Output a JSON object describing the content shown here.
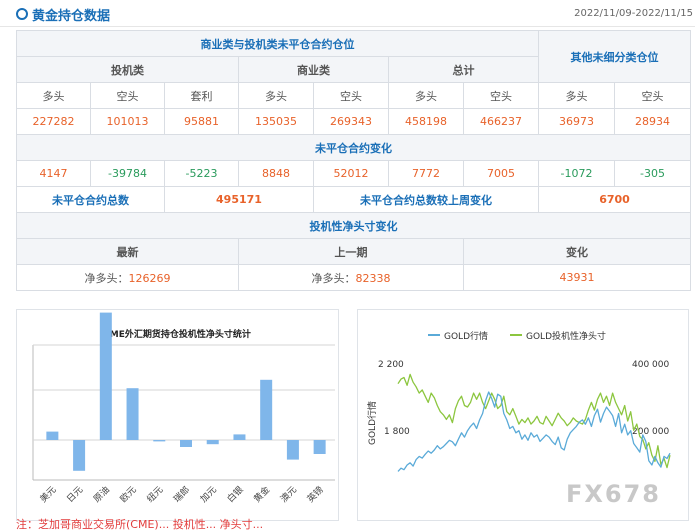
{
  "header": {
    "title": "黄金持仓数据",
    "date_range": "2022/11/09-2022/11/15"
  },
  "table": {
    "group_main": "商业类与投机类未平仓合约仓位",
    "group_other": "其他未细分类仓位",
    "cat_spec": "投机类",
    "cat_comm": "商业类",
    "cat_total": "总计",
    "cols": [
      "多头",
      "空头",
      "套利",
      "多头",
      "空头",
      "多头",
      "空头",
      "多头",
      "空头"
    ],
    "positions": [
      "227282",
      "101013",
      "95881",
      "135035",
      "269343",
      "458198",
      "466237",
      "36973",
      "28934"
    ],
    "change_title": "未平仓合约变化",
    "changes": [
      "4147",
      "-39784",
      "-5223",
      "8848",
      "52012",
      "7772",
      "7005",
      "-1072",
      "-305"
    ],
    "oi_total_label": "未平仓合约总数",
    "oi_total_value": "495171",
    "oi_change_label": "未平仓合约总数较上周变化",
    "oi_change_value": "6700",
    "net_title": "投机性净头寸变化",
    "net_latest_label": "最新",
    "net_prev_label": "上一期",
    "net_change_label": "变化",
    "net_latest_prefix": "净多头：",
    "net_latest_value": "126269",
    "net_prev_prefix": "净多头：",
    "net_prev_value": "82338",
    "net_change_value": "43931"
  },
  "chart_data": [
    {
      "type": "bar",
      "title": "CME外汇期货持仓投机性净头寸统计",
      "categories": [
        "美元",
        "日元",
        "原油",
        "欧元",
        "纽元",
        "瑞郎",
        "加元",
        "白银",
        "黄金",
        "澳元",
        "英镑"
      ],
      "values": [
        0.06,
        -0.22,
        0.91,
        0.37,
        -0.01,
        -0.05,
        -0.03,
        0.04,
        0.43,
        -0.14,
        -0.1
      ],
      "bar_color": "#7fb6ea",
      "grid": true
    },
    {
      "type": "line",
      "series": [
        {
          "name": "GOLD行情",
          "color": "#5aaad8"
        },
        {
          "name": "GOLD投机性净头寸",
          "color": "#8cc63f"
        }
      ],
      "ylabel_left": "GOLD行情",
      "left_ticks": [
        "2 200",
        "1 800"
      ],
      "right_ticks": [
        "400 000",
        "200 000"
      ],
      "ylim_left": [
        1650,
        2200
      ],
      "ylim_right": [
        20000,
        400000
      ],
      "gold_price": [
        1690,
        1705,
        1698,
        1720,
        1730,
        1715,
        1745,
        1760,
        1752,
        1770,
        1785,
        1775,
        1790,
        1810,
        1795,
        1805,
        1820,
        1835,
        1828,
        1810,
        1840,
        1870,
        1850,
        1880,
        1900,
        1915,
        1890,
        1930,
        1960,
        2020,
        2060,
        2030,
        1990,
        2050,
        2040,
        1960,
        1930,
        1890,
        1900,
        1870,
        1880,
        1840,
        1860,
        1835,
        1870,
        1850,
        1860,
        1830,
        1845,
        1860,
        1850,
        1830,
        1815,
        1850,
        1800,
        1790,
        1840,
        1870,
        1885,
        1900,
        1920,
        1930,
        1910,
        1940,
        1900,
        1950,
        1980,
        1920,
        1960,
        1990,
        1970,
        1950,
        1900,
        1960,
        1870,
        1910,
        1860,
        1880,
        1820,
        1800,
        1780,
        1860,
        1830,
        1740,
        1720,
        1760,
        1730,
        1710,
        1760,
        1750,
        1775
      ],
      "gold_net": [
        330000,
        345000,
        350000,
        325000,
        360000,
        335000,
        320000,
        300000,
        310000,
        290000,
        270000,
        300000,
        285000,
        260000,
        240000,
        230000,
        215000,
        230000,
        205000,
        250000,
        275000,
        290000,
        260000,
        255000,
        270000,
        300000,
        280000,
        300000,
        270000,
        250000,
        275000,
        300000,
        280000,
        250000,
        260000,
        290000,
        240000,
        230000,
        250000,
        225000,
        200000,
        215000,
        205000,
        220000,
        200000,
        210000,
        225000,
        205000,
        200000,
        225000,
        210000,
        195000,
        215000,
        235000,
        220000,
        210000,
        195000,
        205000,
        220000,
        210000,
        205000,
        200000,
        215000,
        245000,
        270000,
        245000,
        280000,
        300000,
        270000,
        290000,
        260000,
        300000,
        270000,
        250000,
        230000,
        260000,
        210000,
        240000,
        180000,
        200000,
        160000,
        150000,
        120000,
        140000,
        100000,
        80000,
        130000,
        70000,
        90000,
        60000,
        100000
      ]
    }
  ],
  "watermark": "FX678",
  "footer": "注：芝加哥商业交易所(CME)... 投机性... 净头寸..."
}
